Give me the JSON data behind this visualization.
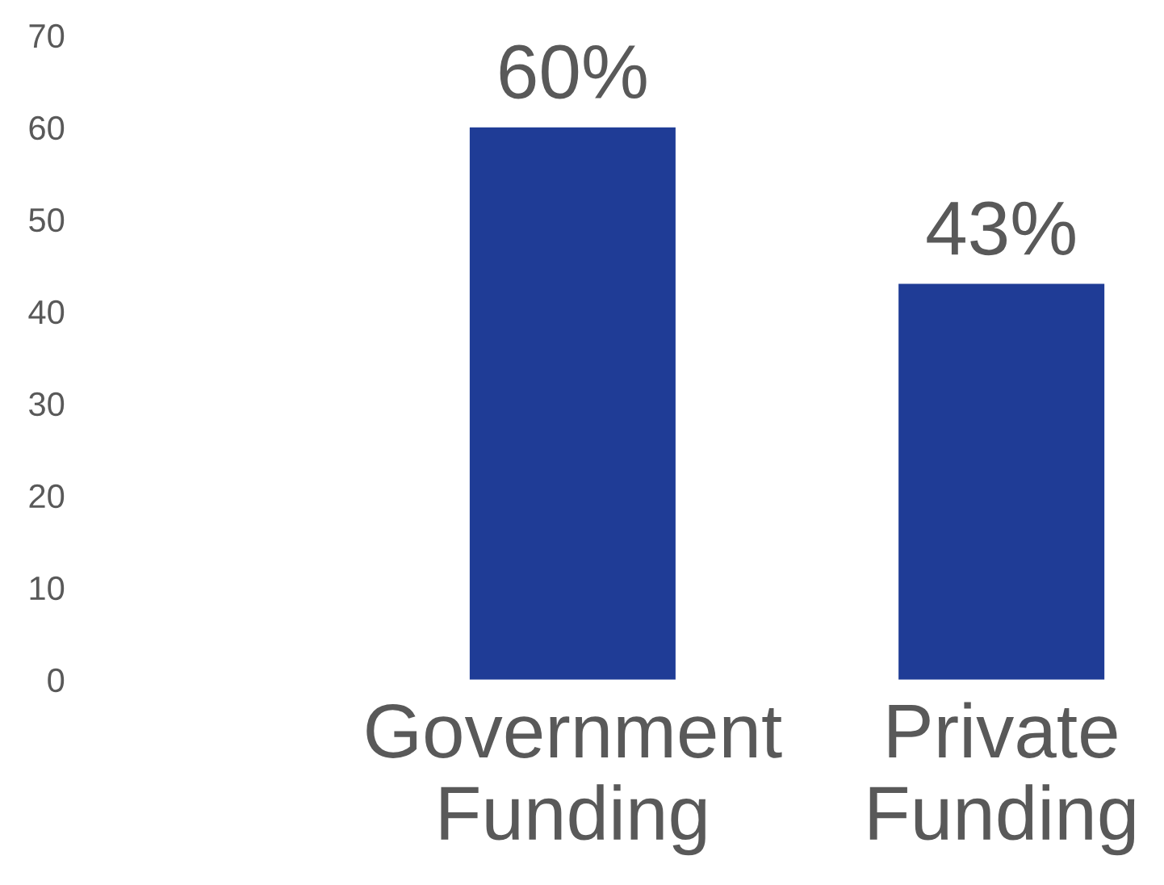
{
  "chart_data": {
    "type": "bar",
    "categories": [
      "Government\nFunding",
      "Private\nFunding"
    ],
    "values": [
      60,
      43
    ],
    "value_labels": [
      "60%",
      "43%"
    ],
    "color": "#1f3c96",
    "ylim": [
      0,
      70
    ],
    "yticks": [
      0,
      10,
      20,
      30,
      40,
      50,
      60,
      70
    ],
    "grid": false,
    "legend": false
  }
}
